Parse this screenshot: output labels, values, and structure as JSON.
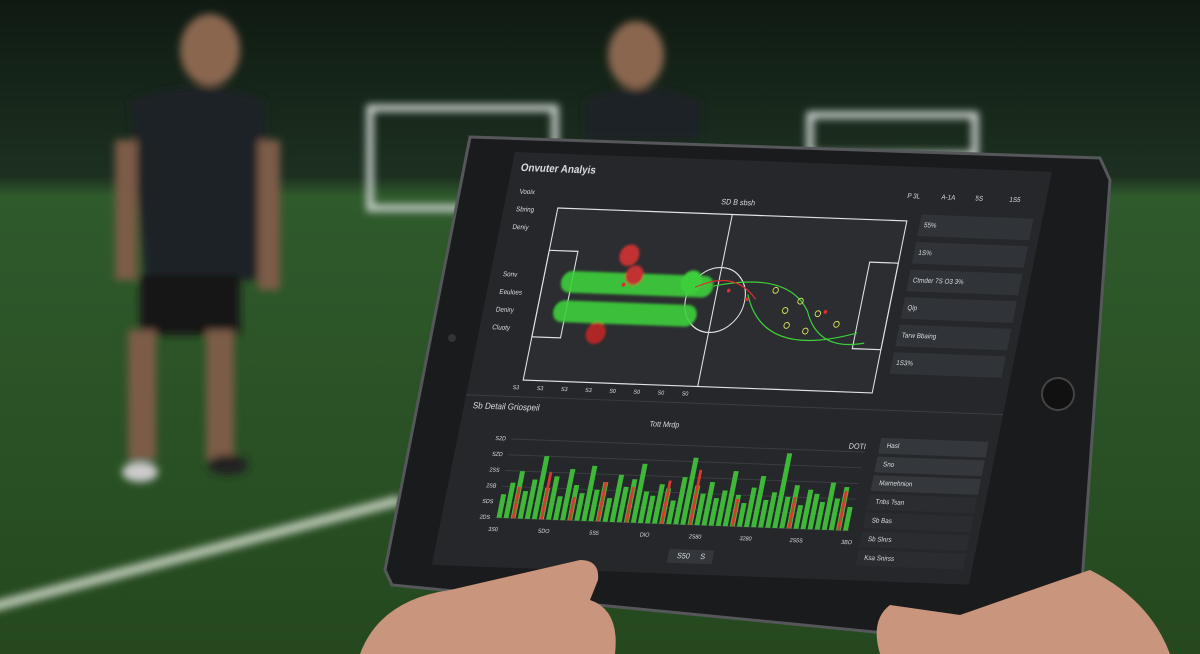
{
  "screen": {
    "title": "Onvuter Analyis",
    "status": [
      "P 3L",
      "A-1A",
      "5S",
      "1S5"
    ],
    "sidebar": [
      "Vooix",
      "Sbring",
      "Deniy",
      "Sonv",
      "Eeuloes",
      "Deniry",
      "Cluoty"
    ],
    "pitch_title": "SD B sbsh",
    "pitch_labels": [
      "S3",
      "S3",
      "S3",
      "S3",
      "S0",
      "S0",
      "S0",
      "S0"
    ],
    "right_panel": [
      "55%",
      "1S%",
      "Ctmder 7S O3 3%",
      "Qip",
      "Tarw Bbaing",
      "1S3%"
    ],
    "chart": {
      "title": "Sb Detail Griospeil",
      "subtitle": "Tott Mrdp",
      "badge": "DOTI",
      "y_labels": [
        "S2D",
        "SZD",
        "2SS",
        "2SB",
        "SDS",
        "2DS"
      ],
      "x_labels": [
        "3S0",
        "SDO",
        "5S5",
        "DIO",
        "2S80",
        "3280",
        "2S5S",
        "3BO"
      ],
      "values": [
        30,
        45,
        60,
        35,
        50,
        80,
        40,
        55,
        30,
        65,
        45,
        35,
        70,
        40,
        50,
        30,
        60,
        45,
        55,
        75,
        40,
        35,
        50,
        45,
        30,
        60,
        85,
        50,
        40,
        55,
        35,
        45,
        70,
        40,
        30,
        50,
        65,
        35,
        45,
        95,
        40,
        55,
        30,
        50,
        45,
        35,
        60,
        40,
        55,
        30
      ],
      "accent": [
        null,
        null,
        40,
        null,
        null,
        null,
        60,
        null,
        null,
        null,
        30,
        null,
        null,
        null,
        50,
        null,
        null,
        null,
        45,
        null,
        null,
        null,
        null,
        55,
        null,
        null,
        null,
        70,
        null,
        null,
        null,
        null,
        null,
        35,
        null,
        null,
        null,
        null,
        null,
        null,
        null,
        40,
        null,
        null,
        null,
        null,
        null,
        null,
        50,
        null
      ],
      "ylim": [
        0,
        100
      ]
    },
    "side_menu": [
      "Hasl",
      "Sno",
      "Marnehnion",
      "Tnbs Tsan",
      "Sb Bas",
      "Sb Slnrs",
      "Ksa Snirss"
    ],
    "controls": [
      "S50",
      "S"
    ]
  }
}
